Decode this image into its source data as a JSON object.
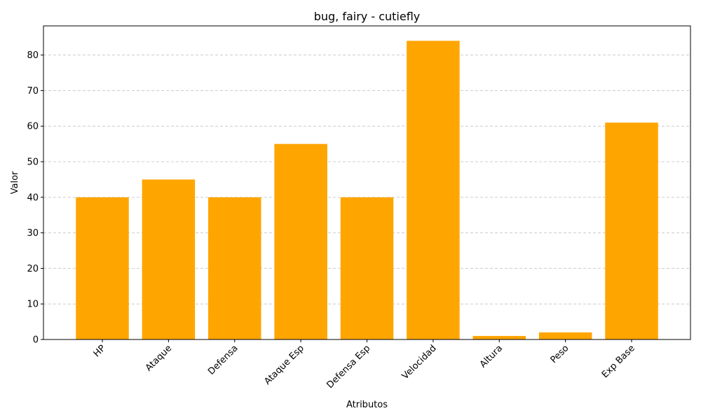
{
  "chart_data": {
    "type": "bar",
    "title": "bug, fairy - cutiefly",
    "xlabel": "Atributos",
    "ylabel": "Valor",
    "categories": [
      "HP",
      "Ataque",
      "Defensa",
      "Ataque Esp",
      "Defensa Esp",
      "Velocidad",
      "Altura",
      "Peso",
      "Exp Base"
    ],
    "values": [
      40,
      45,
      40,
      55,
      40,
      84,
      1,
      2,
      61
    ],
    "ylim": [
      0,
      88.2
    ],
    "yticks": [
      0,
      10,
      20,
      30,
      40,
      50,
      60,
      70,
      80
    ],
    "bar_color": "#ffa500",
    "grid": {
      "axis": "y",
      "style": "dashed"
    },
    "xtick_rotation": 45
  }
}
